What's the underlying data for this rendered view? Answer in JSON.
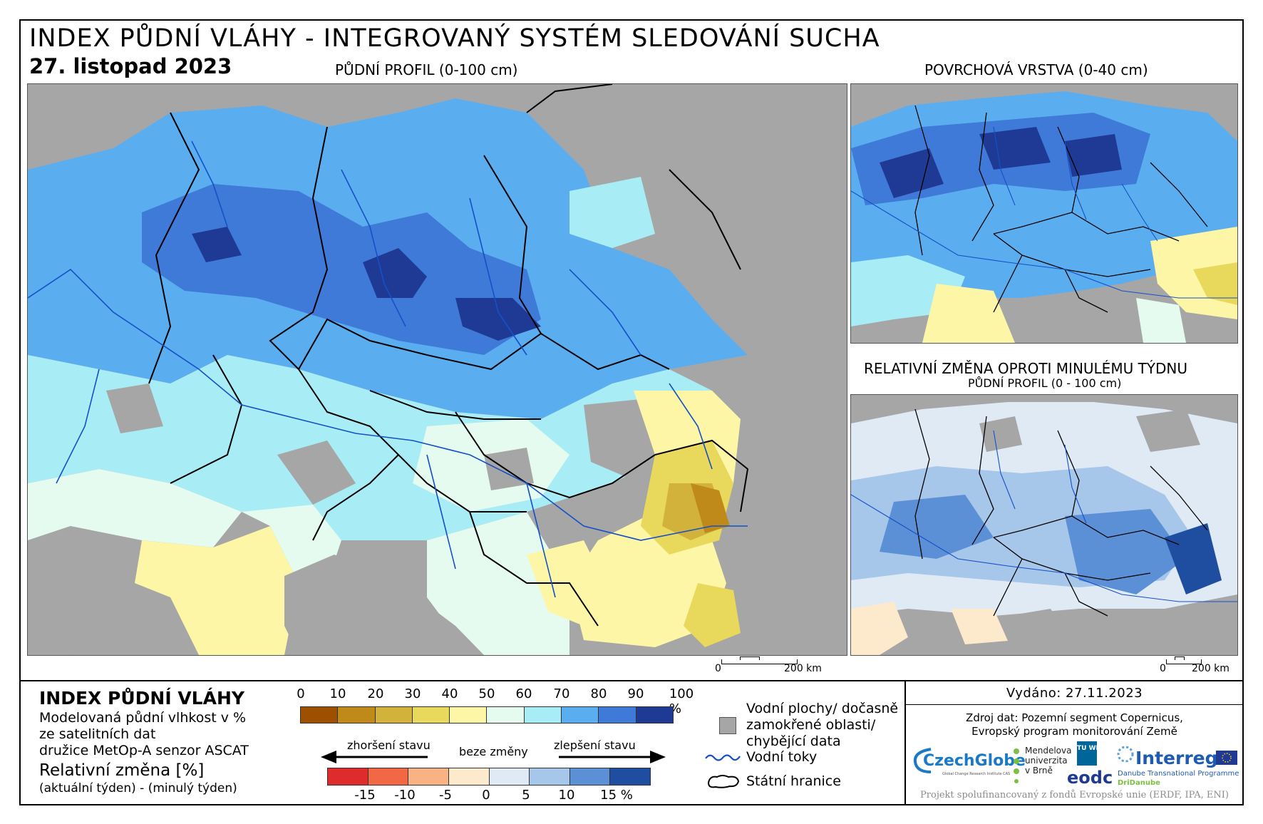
{
  "header": {
    "title": "INDEX PŮDNÍ VLÁHY - INTEGROVANÝ SYSTÉM SLEDOVÁNÍ SUCHA",
    "date": "27. listopad 2023"
  },
  "maps": {
    "main_label": "PŮDNÍ PROFIL (0-100 cm)",
    "surface_label": "POVRCHOVÁ VRSTVA (0-40 cm)",
    "change_label": "RELATIVNÍ ZMĚNA OPROTI MINULÉMU TÝDNU",
    "change_sublabel": "PŮDNÍ PROFIL (0 - 100 cm)",
    "scale_main": {
      "zero": "0",
      "end": "200 km"
    },
    "scale_small": {
      "zero": "0",
      "end": "200 km"
    }
  },
  "legend": {
    "title": "INDEX PŮDNÍ VLÁHY",
    "desc_lines": [
      "Modelovaná půdní vlhkost v %",
      "ze satelitních dat",
      "družice MetOp-A senzor ASCAT"
    ],
    "rel_title": "Relativní změna [%]",
    "rel_sub": "(aktuální týden) - (minulý týden)",
    "index_ticks": [
      "0",
      "10",
      "20",
      "30",
      "40",
      "50",
      "60",
      "70",
      "80",
      "90",
      "100 %"
    ],
    "index_colors": [
      "#9c5000",
      "#c08a1a",
      "#d3b23c",
      "#e8d85c",
      "#fcf6a6",
      "#e6fbf0",
      "#a8ecf6",
      "#5aaef0",
      "#3f7ad8",
      "#1f3a94"
    ],
    "rel_ticks": [
      "-15",
      "-10",
      "-5",
      "0",
      "5",
      "10",
      "15 %"
    ],
    "rel_colors": [
      "#de2b2b",
      "#f26844",
      "#f9b283",
      "#fde9cc",
      "#dfeaf5",
      "#a6c6ea",
      "#5b8fd6",
      "#1f4ea0"
    ],
    "arrow_worse": "zhoršení stavu",
    "arrow_same": "beze změny",
    "arrow_better": "zlepšení stavu",
    "water_label_lines": [
      "Vodní plochy/ dočasně",
      "zamokřené oblasti/",
      "chybějící data"
    ],
    "rivers_label": "Vodní toky",
    "borders_label": "Státní hranice"
  },
  "info": {
    "issued": "Vydáno: 27.11.2023",
    "source_lines": [
      "Zdroj dat: Pozemní segment Copernicus,",
      "Evropský program monitorování Země"
    ],
    "logos": {
      "czechglobe": "CzechGlobe",
      "czechglobe_sub": "Global Change Research Institute CAS",
      "mendel_lines": [
        "Mendelova",
        "univerzita",
        "v Brně"
      ],
      "tuwien": "TU WIEN",
      "eodc": "eodc",
      "interreg": "Interreg",
      "interreg_sub": "Danube Transnational Programme",
      "dridanube": "DriDanube"
    },
    "footnote": "Projekt spolufinancovaný z fondů Evropské unie (ERDF, IPA, ENI)"
  },
  "colors": {
    "nodata_gray": "#a6a6a6",
    "river_blue": "#1550c8",
    "border_black": "#000000"
  }
}
